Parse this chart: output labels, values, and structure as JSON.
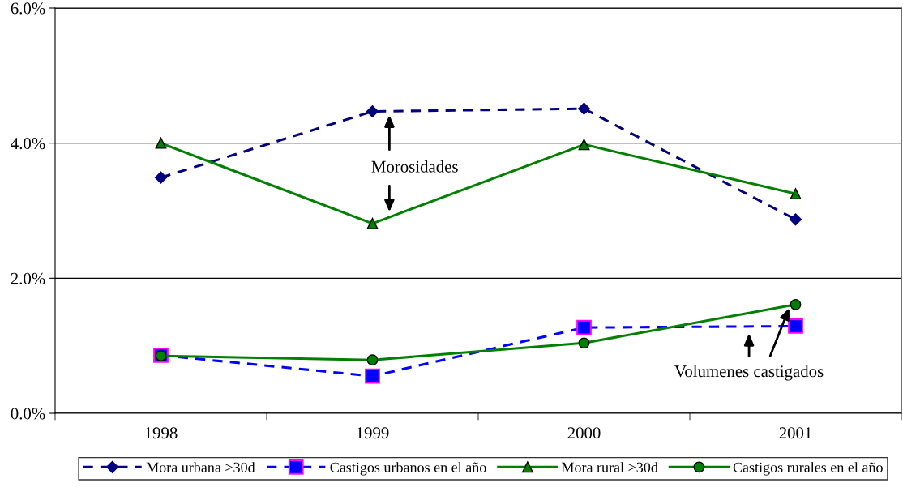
{
  "chart_data": {
    "type": "line",
    "categories": [
      "1998",
      "1999",
      "2000",
      "2001"
    ],
    "series": [
      {
        "name": "Mora urbana >30d",
        "color": "#000080",
        "values": [
          3.49,
          4.47,
          4.51,
          2.87
        ],
        "marker": "diamond",
        "line_style": "dashed"
      },
      {
        "name": "Castigos urbanos en el año",
        "color": "#0000ff",
        "values": [
          0.86,
          0.55,
          1.27,
          1.29
        ],
        "marker": "square",
        "line_style": "dashed"
      },
      {
        "name": "Mora rural >30d",
        "color": "#008000",
        "values": [
          4.0,
          2.81,
          3.98,
          3.25
        ],
        "marker": "triangle",
        "line_style": "solid"
      },
      {
        "name": "Castigos rurales en el año",
        "color": "#008000",
        "values": [
          0.85,
          0.79,
          1.04,
          1.61
        ],
        "marker": "circle",
        "line_style": "solid"
      }
    ],
    "ylim": [
      0,
      6
    ],
    "yticks": [
      {
        "value": 0,
        "label": "0.0%"
      },
      {
        "value": 2,
        "label": "2.0%"
      },
      {
        "value": 4,
        "label": "4.0%"
      },
      {
        "value": 6,
        "label": "6.0%"
      }
    ],
    "grid": "y",
    "legend": "bottom",
    "annotations": [
      "Morosidades",
      "Volumenes castigados"
    ]
  }
}
